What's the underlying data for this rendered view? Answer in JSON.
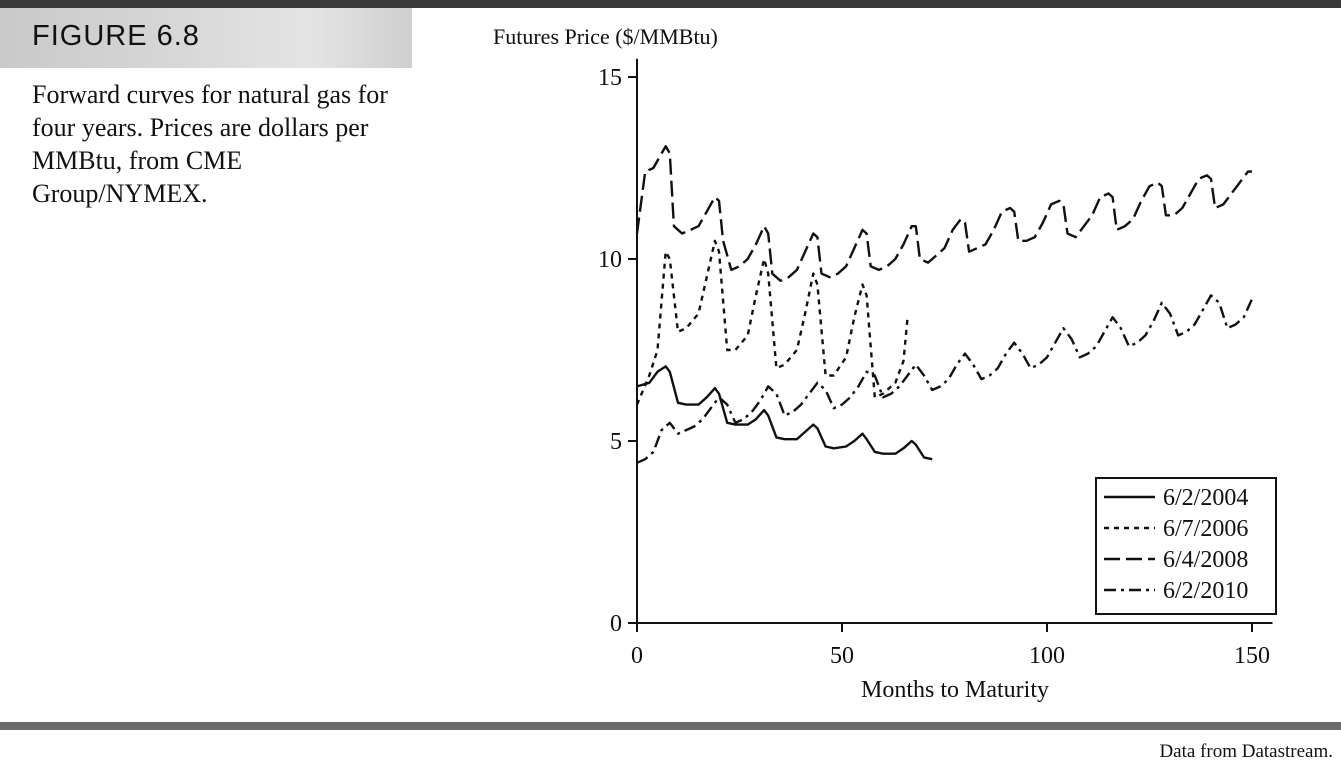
{
  "figure": {
    "label": "FIGURE 6.8",
    "caption": "Forward curves for natural gas for four years. Prices are dollars per MMBtu, from CME Group/NYMEX.",
    "source": "Data from Datastream."
  },
  "chart_data": {
    "type": "line",
    "title": "",
    "ylabel": "Futures Price ($/MMBtu)",
    "xlabel": "Months to Maturity",
    "xlim": [
      0,
      155
    ],
    "ylim": [
      0,
      15.5
    ],
    "xticks": [
      0,
      50,
      100,
      150
    ],
    "yticks": [
      0,
      5,
      10,
      15
    ],
    "grid": false,
    "legend_position": "bottom-right",
    "series": [
      {
        "name": "6/2/2004",
        "dash": "solid",
        "x": [
          0,
          3,
          5,
          7,
          8,
          10,
          12,
          15,
          17,
          19,
          20,
          22,
          24,
          27,
          29,
          31,
          32,
          34,
          36,
          39,
          41,
          43,
          44,
          46,
          48,
          51,
          53,
          55,
          56,
          58,
          60,
          63,
          65,
          67,
          68,
          70,
          72
        ],
        "y": [
          6.5,
          6.6,
          6.9,
          7.05,
          6.9,
          6.05,
          6.0,
          6.0,
          6.2,
          6.45,
          6.3,
          5.5,
          5.45,
          5.45,
          5.6,
          5.85,
          5.7,
          5.1,
          5.05,
          5.05,
          5.25,
          5.45,
          5.35,
          4.85,
          4.8,
          4.85,
          5.0,
          5.2,
          5.05,
          4.7,
          4.65,
          4.65,
          4.8,
          5.0,
          4.9,
          4.55,
          4.5
        ]
      },
      {
        "name": "6/7/2006",
        "dash": "short",
        "x": [
          0,
          3,
          5,
          7,
          8,
          10,
          12,
          15,
          17,
          19,
          20,
          22,
          24,
          27,
          29,
          31,
          32,
          34,
          36,
          39,
          41,
          43,
          44,
          46,
          48,
          51,
          53,
          55,
          56,
          58,
          60,
          63,
          65,
          66
        ],
        "y": [
          6.0,
          6.8,
          7.5,
          10.2,
          10.0,
          8.0,
          8.1,
          8.5,
          9.5,
          10.5,
          10.2,
          7.5,
          7.5,
          7.9,
          9.0,
          10.0,
          9.6,
          7.0,
          7.1,
          7.5,
          8.5,
          9.6,
          9.3,
          6.8,
          6.8,
          7.3,
          8.4,
          9.3,
          9.0,
          6.2,
          6.3,
          6.6,
          7.2,
          8.4
        ]
      },
      {
        "name": "6/4/2008",
        "dash": "long",
        "x": [
          0,
          2,
          4,
          6,
          7,
          8,
          9,
          11,
          13,
          15,
          17,
          19,
          20,
          21,
          23,
          25,
          27,
          29,
          31,
          32,
          33,
          35,
          37,
          39,
          41,
          43,
          44,
          45,
          47,
          49,
          51,
          53,
          55,
          56,
          57,
          59,
          61,
          63,
          65,
          67,
          68,
          69,
          71,
          73,
          75,
          77,
          79,
          80,
          81,
          83,
          85,
          87,
          89,
          91,
          92,
          93,
          95,
          97,
          99,
          101,
          103,
          104,
          105,
          107,
          109,
          111,
          113,
          115,
          116,
          117,
          119,
          121,
          123,
          125,
          127,
          128,
          129,
          131,
          133,
          135,
          137,
          139,
          140,
          141,
          143,
          145,
          147,
          149,
          150
        ],
        "y": [
          10.7,
          12.4,
          12.5,
          12.9,
          13.1,
          12.9,
          10.9,
          10.7,
          10.8,
          10.9,
          11.3,
          11.7,
          11.6,
          10.5,
          9.7,
          9.8,
          10.0,
          10.4,
          10.9,
          10.7,
          9.6,
          9.4,
          9.5,
          9.7,
          10.2,
          10.7,
          10.6,
          9.6,
          9.5,
          9.6,
          9.8,
          10.3,
          10.8,
          10.7,
          9.8,
          9.7,
          9.8,
          10.0,
          10.4,
          10.9,
          10.9,
          10.0,
          9.9,
          10.1,
          10.3,
          10.8,
          11.1,
          11.0,
          10.2,
          10.3,
          10.4,
          10.8,
          11.3,
          11.4,
          11.3,
          10.5,
          10.5,
          10.6,
          11.0,
          11.5,
          11.6,
          11.5,
          10.7,
          10.6,
          10.9,
          11.2,
          11.7,
          11.8,
          11.7,
          10.8,
          10.9,
          11.1,
          11.6,
          12.0,
          12.1,
          12.0,
          11.2,
          11.2,
          11.4,
          11.8,
          12.2,
          12.3,
          12.2,
          11.4,
          11.5,
          11.8,
          12.1,
          12.4,
          12.4
        ]
      },
      {
        "name": "6/2/2010",
        "dash": "dashdot",
        "x": [
          0,
          2,
          4,
          6,
          8,
          10,
          12,
          14,
          16,
          18,
          20,
          22,
          24,
          26,
          28,
          30,
          32,
          34,
          36,
          38,
          40,
          42,
          44,
          46,
          48,
          50,
          52,
          54,
          56,
          58,
          60,
          62,
          64,
          66,
          68,
          70,
          72,
          74,
          76,
          78,
          80,
          82,
          84,
          86,
          88,
          90,
          92,
          94,
          96,
          98,
          100,
          102,
          104,
          106,
          108,
          110,
          112,
          114,
          116,
          118,
          120,
          122,
          124,
          126,
          128,
          130,
          132,
          134,
          136,
          138,
          140,
          142,
          144,
          146,
          148,
          150
        ],
        "y": [
          4.4,
          4.5,
          4.7,
          5.3,
          5.5,
          5.2,
          5.3,
          5.4,
          5.6,
          5.9,
          6.2,
          6.0,
          5.5,
          5.6,
          5.8,
          6.1,
          6.5,
          6.3,
          5.7,
          5.8,
          6.0,
          6.3,
          6.6,
          6.4,
          5.9,
          6.0,
          6.2,
          6.5,
          6.9,
          6.8,
          6.2,
          6.3,
          6.5,
          6.8,
          7.1,
          6.8,
          6.4,
          6.5,
          6.7,
          7.1,
          7.4,
          7.1,
          6.7,
          6.8,
          7.0,
          7.4,
          7.7,
          7.4,
          7.0,
          7.1,
          7.3,
          7.7,
          8.1,
          7.8,
          7.3,
          7.4,
          7.6,
          8.0,
          8.4,
          8.1,
          7.6,
          7.7,
          7.9,
          8.3,
          8.8,
          8.5,
          7.9,
          8.0,
          8.2,
          8.6,
          9.0,
          8.8,
          8.1,
          8.2,
          8.4,
          8.9
        ]
      }
    ]
  }
}
